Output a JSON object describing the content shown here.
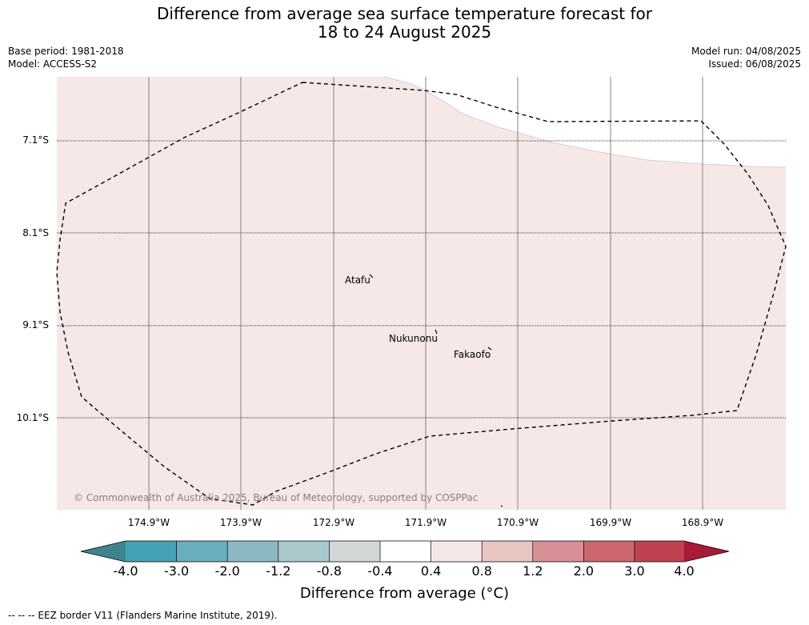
{
  "title": {
    "line1": "Difference from average sea surface temperature forecast for",
    "line2": "18 to 24 August 2025"
  },
  "meta_left": {
    "base_period": "Base period: 1981-2018",
    "model": "Model: ACCESS-S2"
  },
  "meta_right": {
    "model_run": "Model run: 04/08/2025",
    "issued": "Issued: 06/08/2025"
  },
  "map": {
    "latitude_labels": [
      "7.1°S",
      "8.1°S",
      "9.1°S",
      "10.1°S"
    ],
    "longitude_labels": [
      "174.9°W",
      "173.9°W",
      "172.9°W",
      "171.9°W",
      "170.9°W",
      "169.9°W",
      "168.9°W"
    ],
    "places": [
      "Atafu",
      "Nukunonu",
      "Fakaofo"
    ],
    "copyright": "© Commonwealth of Australia 2025, Bureau of Meteorology, supported by COSPPac",
    "sea_color": "#f5e8e7",
    "land_gap_color": "#ffffff"
  },
  "colorbar": {
    "ticks": [
      "-4.0",
      "-3.0",
      "-2.0",
      "-1.2",
      "-0.8",
      "-0.4",
      "0.4",
      "0.8",
      "1.2",
      "2.0",
      "3.0",
      "4.0"
    ],
    "colors": [
      "#3e848f",
      "#45a2b4",
      "#6aadbd",
      "#8cb8c1",
      "#a8c8cc",
      "#d3d7d7",
      "#ffffff",
      "#f6e8e7",
      "#e9c5c2",
      "#d88f96",
      "#cb6670",
      "#bf4252",
      "#a81a37"
    ],
    "label": "Difference from average (°C)"
  },
  "footer": "--  --  -- EEZ border V11 (Flanders Marine Institute, 2019)."
}
